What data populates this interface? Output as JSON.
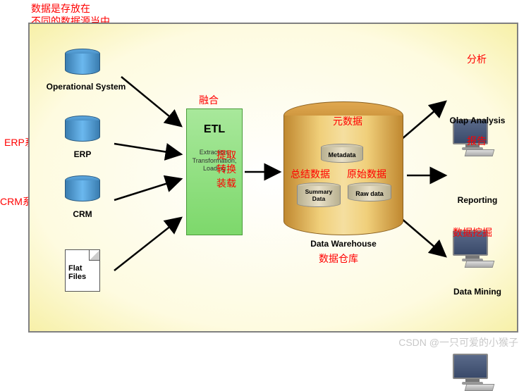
{
  "diagram": {
    "type": "flowchart",
    "background_gradient": [
      "#ffffff",
      "#fefbe0",
      "#f7f0a8"
    ],
    "border_color": "#808080",
    "annotations": {
      "top_note_line1": "数据是存放在",
      "top_note_line2": "不同的数据源当中",
      "erp_note": "ERP系统",
      "crm_note": "CRM系统",
      "etl_merge": "融合",
      "etl_ops_line1": "提取",
      "etl_ops_line2": "转换",
      "etl_ops_line3": "装载",
      "metadata_note": "元数据",
      "summary_note": "总结数据",
      "raw_note": "原始数据",
      "dw_note": "数据仓库",
      "analysis_note": "分析",
      "report_note": "报告",
      "mining_note": "数据挖掘"
    },
    "sources": {
      "operational": "Operational System",
      "erp": "ERP",
      "crm": "CRM",
      "flat": "Flat\nFiles",
      "cylinder_color": "#5da8e0"
    },
    "etl": {
      "title": "ETL",
      "subtitle": "Extraction,\nTransformation,\nLoading",
      "fill_color": "#a8e89b"
    },
    "warehouse": {
      "label": "Data Warehouse",
      "metadata": "Metadata",
      "summary": "Summary\nData",
      "raw": "Raw data",
      "fill_color": "#e0a850"
    },
    "outputs": {
      "olap": "Olap Analysis",
      "reporting": "Reporting",
      "mining": "Data Mining"
    },
    "arrow_color": "#000000",
    "annotation_color": "#ff0000"
  },
  "watermark": "CSDN @一只可爱的小猴子"
}
